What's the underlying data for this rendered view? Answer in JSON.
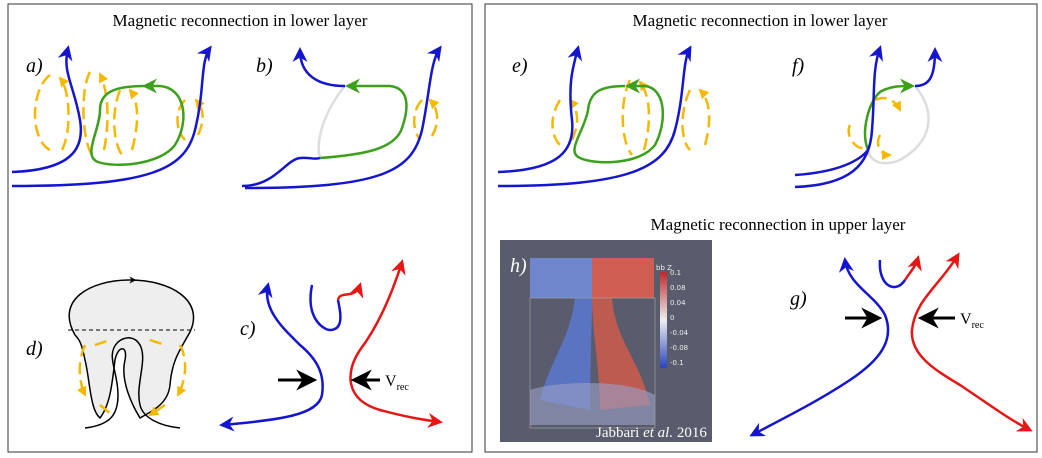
{
  "left": {
    "title": "Magnetic reconnection in lower layer",
    "labels": {
      "a": "a)",
      "b": "b)",
      "c": "c)",
      "d": "d)"
    },
    "c_velocity": {
      "symbol": "V",
      "subscript": "rec"
    }
  },
  "right": {
    "title_lower": "Magnetic reconnection in lower layer",
    "title_upper": "Magnetic reconnection in upper layer",
    "labels": {
      "e": "e)",
      "f": "f)",
      "g": "g)",
      "h": "h)"
    },
    "g_velocity": {
      "symbol": "V",
      "subscript": "rec"
    },
    "inset": {
      "colorbar_title": "bb Z",
      "colorbar_ticks": [
        "0.1",
        "0.08",
        "0.04",
        "0",
        "-0.04",
        "-0.08",
        "-0.1"
      ],
      "credit": {
        "author": "Jabbari",
        "etal": "et al.",
        "year": "2016"
      }
    }
  }
}
